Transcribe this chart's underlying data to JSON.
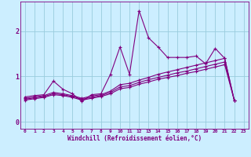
{
  "xlabel": "Windchill (Refroidissement éolien,°C)",
  "xlim": [
    -0.5,
    23.5
  ],
  "ylim": [
    -0.15,
    2.65
  ],
  "xticks": [
    0,
    1,
    2,
    3,
    4,
    5,
    6,
    7,
    8,
    9,
    10,
    11,
    12,
    13,
    14,
    15,
    16,
    17,
    18,
    19,
    20,
    21,
    22,
    23
  ],
  "yticks": [
    0,
    1,
    2
  ],
  "background_color": "#cceeff",
  "line_color": "#800080",
  "grid_color": "#99ccdd",
  "series": [
    {
      "x": [
        0,
        1,
        2,
        3,
        4,
        5,
        6,
        7,
        8,
        9,
        10,
        11,
        12,
        13,
        14,
        15,
        16,
        17,
        18,
        19,
        20,
        21,
        22
      ],
      "y": [
        0.55,
        0.58,
        0.6,
        0.9,
        0.72,
        0.62,
        0.45,
        0.6,
        0.62,
        1.05,
        1.65,
        1.05,
        2.45,
        1.85,
        1.65,
        1.42,
        1.42,
        1.42,
        1.45,
        1.28,
        1.62,
        1.4,
        0.48
      ]
    },
    {
      "x": [
        0,
        1,
        2,
        3,
        4,
        5,
        6,
        7,
        8,
        9,
        10,
        11,
        12,
        13,
        14,
        15,
        16,
        17,
        18,
        19,
        20,
        21,
        22
      ],
      "y": [
        0.52,
        0.55,
        0.58,
        0.65,
        0.62,
        0.58,
        0.52,
        0.57,
        0.6,
        0.68,
        0.82,
        0.85,
        0.92,
        0.98,
        1.05,
        1.1,
        1.15,
        1.2,
        1.25,
        1.3,
        1.35,
        1.4,
        0.48
      ]
    },
    {
      "x": [
        0,
        1,
        2,
        3,
        4,
        5,
        6,
        7,
        8,
        9,
        10,
        11,
        12,
        13,
        14,
        15,
        16,
        17,
        18,
        19,
        20,
        21,
        22
      ],
      "y": [
        0.5,
        0.53,
        0.56,
        0.62,
        0.6,
        0.56,
        0.5,
        0.54,
        0.58,
        0.65,
        0.77,
        0.8,
        0.87,
        0.93,
        0.98,
        1.03,
        1.08,
        1.12,
        1.17,
        1.22,
        1.27,
        1.32,
        0.48
      ]
    },
    {
      "x": [
        0,
        1,
        2,
        3,
        4,
        5,
        6,
        7,
        8,
        9,
        10,
        11,
        12,
        13,
        14,
        15,
        16,
        17,
        18,
        19,
        20,
        21,
        22
      ],
      "y": [
        0.48,
        0.51,
        0.54,
        0.6,
        0.58,
        0.54,
        0.48,
        0.52,
        0.56,
        0.62,
        0.73,
        0.76,
        0.83,
        0.88,
        0.94,
        0.98,
        1.02,
        1.07,
        1.11,
        1.16,
        1.21,
        1.26,
        0.48
      ]
    }
  ]
}
